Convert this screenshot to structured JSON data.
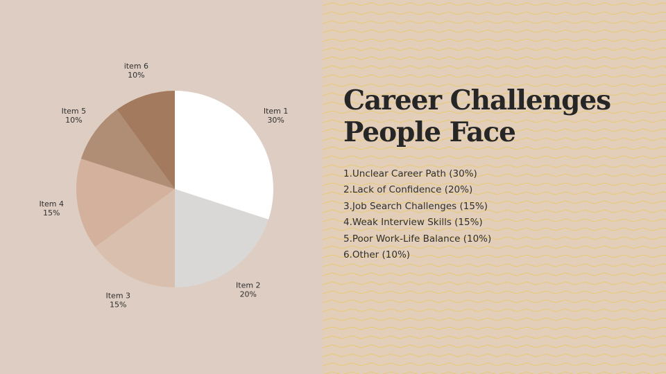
{
  "slide": {
    "title_line1": "Career Challenges",
    "title_line2": "People Face",
    "items": [
      "1.Unclear Career Path (30%)",
      "2.Lack of Confidence (20%)",
      "3.Job Search Challenges (15%)",
      "4.Weak Interview Skills (15%)",
      "5.Poor Work-Life Balance (10%)",
      "6.Other (10%)"
    ]
  },
  "colors": {
    "left_background": "#ddcdc2",
    "right_background": "#e3cfb9",
    "zigzag_line": "#e8c96a"
  },
  "chart_data": {
    "type": "pie",
    "start_angle_deg": 0,
    "direction": "clockwise",
    "slices": [
      {
        "name": "Item 1",
        "value": 30,
        "label": "30%",
        "color": "#ffffff"
      },
      {
        "name": "Item 2",
        "value": 20,
        "label": "20%",
        "color": "#d9d8d7"
      },
      {
        "name": "Item 3",
        "value": 15,
        "label": "15%",
        "color": "#d9bfad"
      },
      {
        "name": "Item 4",
        "value": 15,
        "label": "15%",
        "color": "#d3b19d"
      },
      {
        "name": "Item 5",
        "value": 10,
        "label": "10%",
        "color": "#b08e76"
      },
      {
        "name": "item 6",
        "value": 10,
        "label": "10%",
        "color": "#a37a5d"
      }
    ]
  }
}
